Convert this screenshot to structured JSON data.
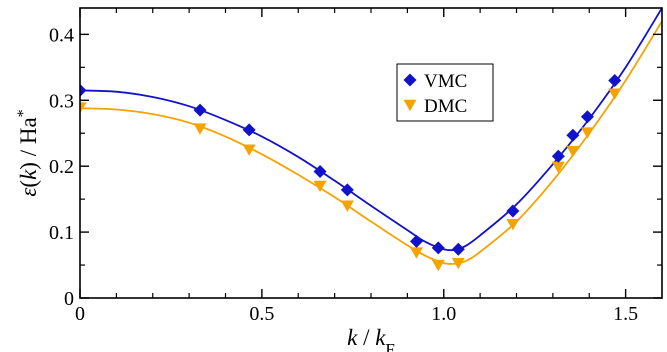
{
  "chart_data": {
    "type": "scatter",
    "xlabel": {
      "var": "k",
      "sep": " / ",
      "ref": "k",
      "sub": "F"
    },
    "ylabel": {
      "sym": "ε",
      "paren_open": "(",
      "var": "k",
      "paren_close": ")",
      "sep": " / ",
      "unit": "Ha",
      "sup": "*"
    },
    "xlim": [
      0,
      1.6
    ],
    "ylim": [
      0,
      0.44
    ],
    "xticks": [
      0,
      0.5,
      1.0,
      1.5
    ],
    "xtick_labels": [
      "0",
      "0.5",
      "1.0",
      "1.5"
    ],
    "yticks": [
      0,
      0.1,
      0.2,
      0.3,
      0.4
    ],
    "ytick_labels": [
      "0",
      "0.1",
      "0.2",
      "0.3",
      "0.4"
    ],
    "grid": false,
    "legend_position": "upper-center-right",
    "series": [
      {
        "name": "VMC",
        "color": "#1212cc",
        "marker": "diamond",
        "x": [
          0.0,
          0.33,
          0.465,
          0.66,
          0.735,
          0.925,
          0.985,
          1.04,
          1.19,
          1.315,
          1.355,
          1.395,
          1.47
        ],
        "y": [
          0.315,
          0.285,
          0.255,
          0.192,
          0.164,
          0.086,
          0.076,
          0.074,
          0.132,
          0.215,
          0.247,
          0.275,
          0.33
        ],
        "fit_x": [
          0.0,
          0.1,
          0.2,
          0.3,
          0.4,
          0.5,
          0.6,
          0.7,
          0.8,
          0.9,
          0.95,
          1.0,
          1.03,
          1.06,
          1.1,
          1.2,
          1.3,
          1.4,
          1.5,
          1.6
        ],
        "fit_y": [
          0.315,
          0.313,
          0.305,
          0.291,
          0.27,
          0.245,
          0.214,
          0.178,
          0.14,
          0.103,
          0.085,
          0.074,
          0.073,
          0.079,
          0.095,
          0.142,
          0.203,
          0.272,
          0.35,
          0.44
        ]
      },
      {
        "name": "DMC",
        "color": "#f5a300",
        "marker": "triangle-down",
        "x": [
          0.0,
          0.33,
          0.465,
          0.66,
          0.735,
          0.925,
          0.985,
          1.04,
          1.19,
          1.315,
          1.355,
          1.395,
          1.47
        ],
        "y": [
          0.289,
          0.257,
          0.225,
          0.17,
          0.14,
          0.069,
          0.05,
          0.053,
          0.112,
          0.199,
          0.223,
          0.251,
          0.31
        ],
        "fit_x": [
          0.0,
          0.1,
          0.2,
          0.3,
          0.4,
          0.5,
          0.6,
          0.7,
          0.8,
          0.9,
          0.95,
          1.0,
          1.03,
          1.06,
          1.1,
          1.2,
          1.3,
          1.4,
          1.5,
          1.6
        ],
        "fit_y": [
          0.288,
          0.286,
          0.279,
          0.266,
          0.245,
          0.218,
          0.187,
          0.153,
          0.116,
          0.08,
          0.064,
          0.053,
          0.052,
          0.056,
          0.07,
          0.116,
          0.178,
          0.25,
          0.33,
          0.42
        ]
      }
    ]
  }
}
